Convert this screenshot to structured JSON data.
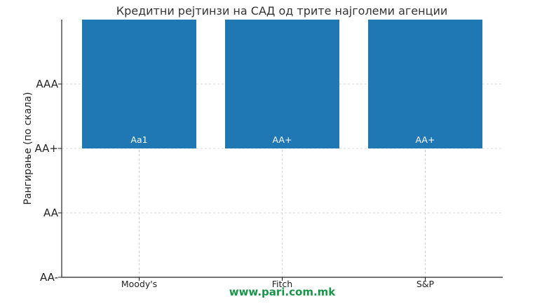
{
  "chart_data": {
    "type": "bar",
    "title": "Кредитни рејтинзи на САД од трите најголеми агенции",
    "ylabel": "Рангирање (по скала)",
    "xlabel": "",
    "categories": [
      "Moody's",
      "Fitch",
      "S&P"
    ],
    "values": [
      2,
      2,
      2
    ],
    "bar_labels": [
      "Aa1",
      "AA+",
      "AA+"
    ],
    "y_ticks": [
      {
        "value": 0,
        "label": "AA-"
      },
      {
        "value": 1,
        "label": "AA"
      },
      {
        "value": 2,
        "label": "AA+"
      },
      {
        "value": 3,
        "label": "AAA"
      }
    ],
    "ylim": [
      0,
      4
    ],
    "grid": true,
    "bar_top_clipped": true,
    "bar_color": "#1f77b4"
  },
  "watermark": "www.pari.com.mk",
  "colors": {
    "bar": "#1f77b4",
    "watermark": "#17964a",
    "grid": "#cccccc"
  }
}
